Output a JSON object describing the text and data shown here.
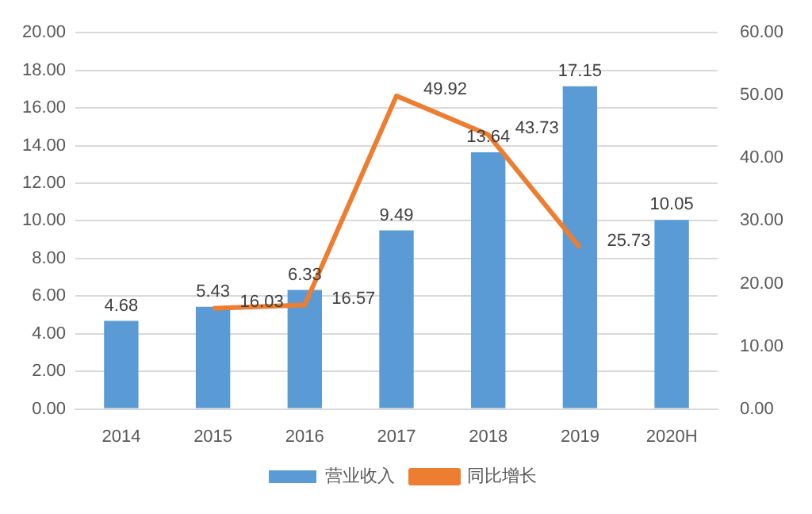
{
  "chart_data": {
    "type": "bar",
    "categories": [
      "2014",
      "2015",
      "2016",
      "2017",
      "2018",
      "2019",
      "2020H"
    ],
    "series": [
      {
        "name": "营业收入",
        "color": "#5b9bd5",
        "values": [
          4.68,
          5.43,
          6.33,
          9.49,
          13.64,
          17.15,
          10.05
        ]
      },
      {
        "name": "同比增长",
        "type": "line",
        "axis": "y2",
        "color": "#ed7d31",
        "values": [
          null,
          16.03,
          16.57,
          49.92,
          43.73,
          25.73,
          null
        ]
      }
    ],
    "ylim": [
      0,
      20
    ],
    "yticks": [
      {
        "value": 0,
        "label": "0.00"
      },
      {
        "value": 2,
        "label": "2.00"
      },
      {
        "value": 4,
        "label": "4.00"
      },
      {
        "value": 6,
        "label": "6.00"
      },
      {
        "value": 8,
        "label": "8.00"
      },
      {
        "value": 10,
        "label": "10.00"
      },
      {
        "value": 12,
        "label": "12.00"
      },
      {
        "value": 14,
        "label": "14.00"
      },
      {
        "value": 16,
        "label": "16.00"
      },
      {
        "value": 18,
        "label": "18.00"
      },
      {
        "value": 20,
        "label": "20.00"
      }
    ],
    "y2lim": [
      0,
      60
    ],
    "y2ticks": [
      {
        "value": 0,
        "label": "0.00"
      },
      {
        "value": 10,
        "label": "10.00"
      },
      {
        "value": 20,
        "label": "20.00"
      },
      {
        "value": 30,
        "label": "30.00"
      },
      {
        "value": 40,
        "label": "40.00"
      },
      {
        "value": 50,
        "label": "50.00"
      },
      {
        "value": 60,
        "label": "60.00"
      }
    ],
    "grid": "y",
    "legend": "bottom",
    "marker": "none",
    "line_style": "solid",
    "data_labels": true
  }
}
